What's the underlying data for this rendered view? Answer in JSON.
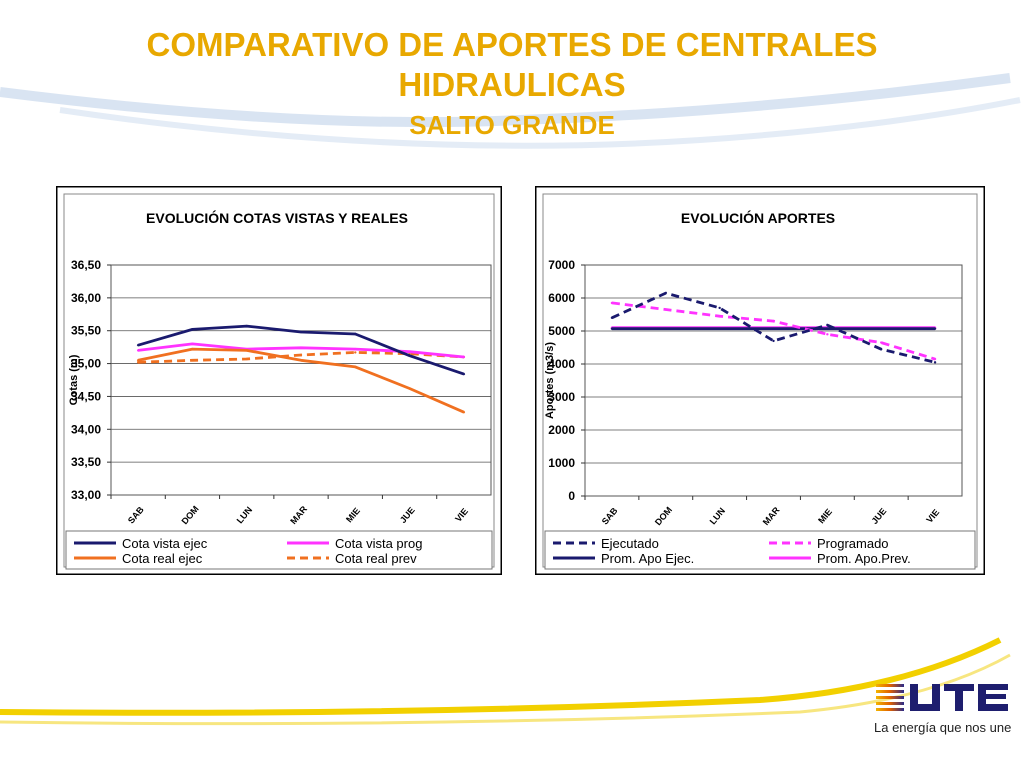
{
  "page": {
    "title_line1": "COMPARATIVO DE APORTES DE CENTRALES",
    "title_line2": "HIDRAULICAS",
    "subtitle": "SALTO GRANDE",
    "tagline": "La energía que nos une",
    "logo_text": "UTE",
    "accent_color": "#e8a800"
  },
  "chart_data": [
    {
      "type": "line",
      "title": "EVOLUCIÓN  COTAS VISTAS Y REALES",
      "xlabel": "",
      "ylabel": "Cotas (m)",
      "categories": [
        "SAB",
        "DOM",
        "LUN",
        "MAR",
        "MIE",
        "JUE",
        "VIE"
      ],
      "ylim": [
        33.0,
        36.5
      ],
      "yticks": [
        "36,50",
        "36,00",
        "35,50",
        "35,00",
        "34,50",
        "34,00",
        "33,50",
        "33,00"
      ],
      "ytick_values": [
        36.5,
        36.0,
        35.5,
        35.0,
        34.5,
        34.0,
        33.5,
        33.0
      ],
      "grid": true,
      "legend_position": "bottom",
      "series": [
        {
          "name": "Cota vista ejec",
          "color": "#1a1a6e",
          "dash": "solid",
          "values": [
            35.28,
            35.52,
            35.57,
            35.48,
            35.45,
            35.12,
            34.84
          ]
        },
        {
          "name": "Cota vista prog",
          "color": "#ff33ff",
          "dash": "solid",
          "values": [
            35.2,
            35.3,
            35.22,
            35.24,
            35.22,
            35.18,
            35.1
          ]
        },
        {
          "name": "Cota real ejec",
          "color": "#f07020",
          "dash": "solid",
          "values": [
            35.05,
            35.22,
            35.2,
            35.05,
            34.95,
            34.62,
            34.26
          ]
        },
        {
          "name": "Cota real prev",
          "color": "#f07020",
          "dash": "dash",
          "values": [
            35.02,
            35.05,
            35.07,
            35.13,
            35.17,
            35.15,
            35.1
          ]
        }
      ]
    },
    {
      "type": "line",
      "title": "EVOLUCIÓN  APORTES",
      "xlabel": "",
      "ylabel": "Aportes (m3/s)",
      "categories": [
        "SAB",
        "DOM",
        "LUN",
        "MAR",
        "MIE",
        "JUE",
        "VIE"
      ],
      "ylim": [
        0,
        7000
      ],
      "yticks": [
        "7000",
        "6000",
        "5000",
        "4000",
        "3000",
        "2000",
        "1000",
        "0"
      ],
      "ytick_values": [
        7000,
        6000,
        5000,
        4000,
        3000,
        2000,
        1000,
        0
      ],
      "grid": true,
      "legend_position": "bottom",
      "series": [
        {
          "name": "Ejecutado",
          "color": "#1a1a6e",
          "dash": "dash",
          "values": [
            5400,
            6150,
            5700,
            4700,
            5180,
            4450,
            4050
          ]
        },
        {
          "name": "Programado",
          "color": "#ff33ff",
          "dash": "dash",
          "values": [
            5850,
            5650,
            5450,
            5300,
            4900,
            4650,
            4150
          ]
        },
        {
          "name": "Prom. Apo Ejec.",
          "color": "#1a1a6e",
          "dash": "solid",
          "values": [
            5070,
            5070,
            5070,
            5070,
            5070,
            5070,
            5070
          ]
        },
        {
          "name": "Prom. Apo.Prev.",
          "color": "#ff33ff",
          "dash": "solid",
          "values": [
            5100,
            5100,
            5100,
            5100,
            5100,
            5100,
            5100
          ]
        }
      ]
    }
  ]
}
